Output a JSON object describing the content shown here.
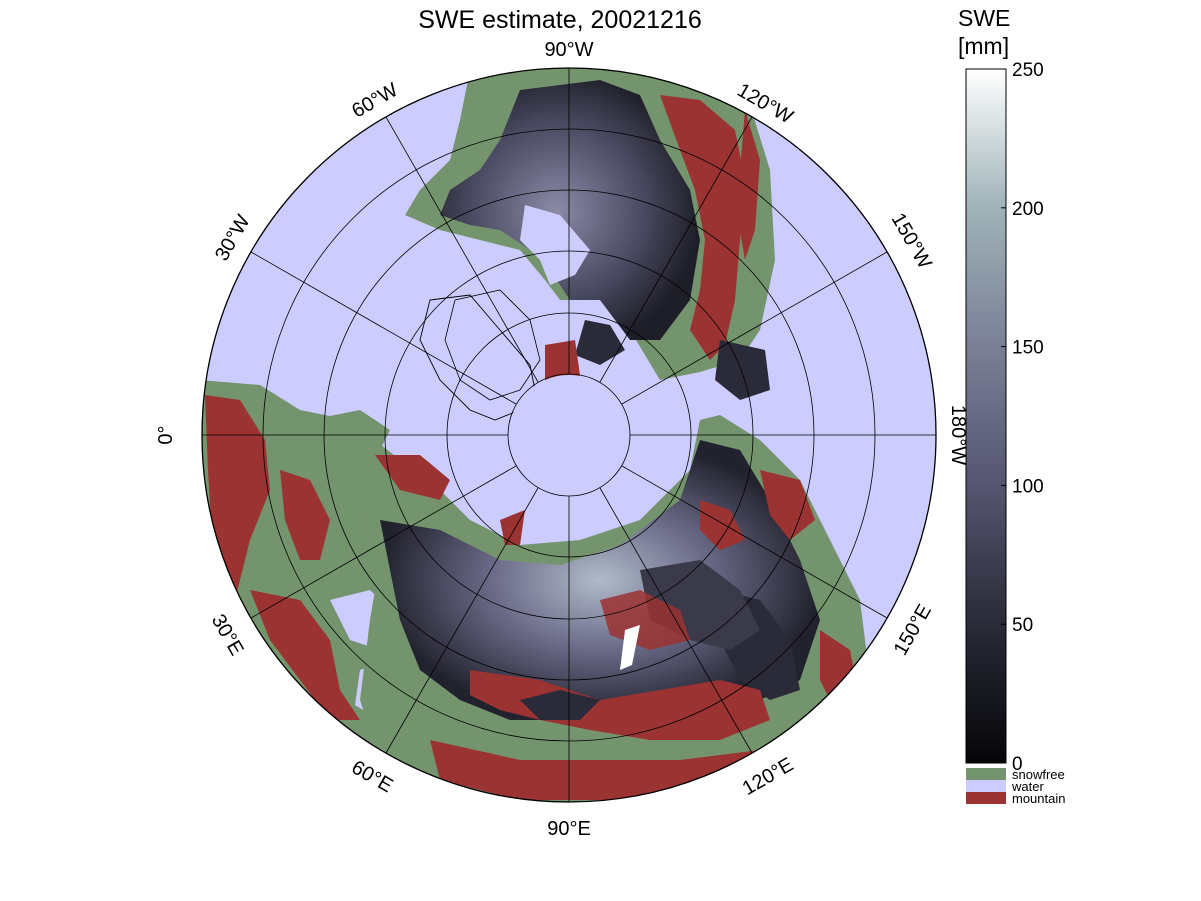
{
  "title": "SWE estimate, 20021216",
  "colorbar": {
    "title_line1": "SWE",
    "title_line2": "[mm]",
    "ticks": [
      "0",
      "50",
      "100",
      "150",
      "200",
      "250"
    ],
    "range_mm": [
      0,
      250
    ],
    "gradient": [
      "#050508",
      "#2a2a38",
      "#555570",
      "#7a7f96",
      "#9fb3b8",
      "#ffffff"
    ],
    "categories": [
      {
        "label": "snowfree",
        "color": "#74946d"
      },
      {
        "label": "water",
        "color": "#ccccff"
      },
      {
        "label": "mountain",
        "color": "#9b3333"
      }
    ]
  },
  "map": {
    "projection": "north polar stereographic",
    "ocean_color": "#ccccff",
    "land_colors": {
      "snowfree": "#74946d",
      "mountain": "#9b3333",
      "snow_low": "#1c1c26",
      "snow_mid": "#5a5a75",
      "snow_high": "#b9c4ce"
    },
    "longitude_labels": [
      {
        "id": "lon-90w",
        "text": "90°W"
      },
      {
        "id": "lon-120w",
        "text": "120°W"
      },
      {
        "id": "lon-150w",
        "text": "150°W"
      },
      {
        "id": "lon-180w",
        "text": "180°W"
      },
      {
        "id": "lon-150e",
        "text": "150°E"
      },
      {
        "id": "lon-120e",
        "text": "120°E"
      },
      {
        "id": "lon-90e",
        "text": "90°E"
      },
      {
        "id": "lon-60e",
        "text": "60°E"
      },
      {
        "id": "lon-30e",
        "text": "30°E"
      },
      {
        "id": "lon-0",
        "text": "0°"
      },
      {
        "id": "lon-30w",
        "text": "30°W"
      },
      {
        "id": "lon-60w",
        "text": "60°W"
      }
    ]
  }
}
